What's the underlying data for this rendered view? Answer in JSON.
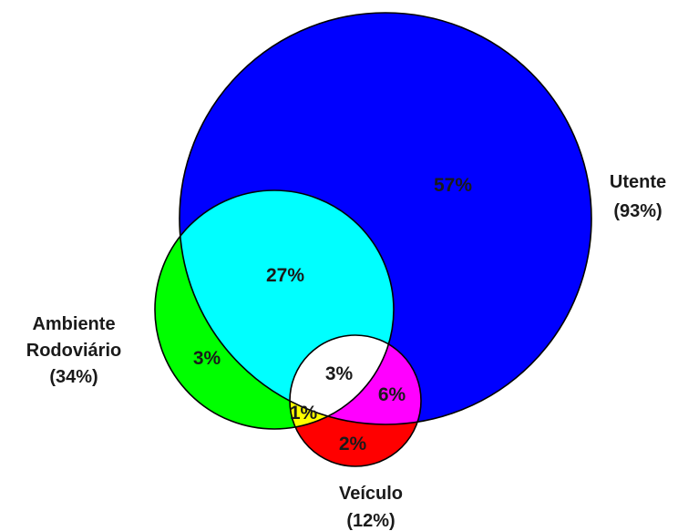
{
  "diagram": {
    "type": "venn",
    "sets": [
      {
        "id": "utente",
        "name": "Utente",
        "share": "(93%)"
      },
      {
        "id": "ambiente",
        "name_lines": [
          "Ambiente",
          "Rodoviário"
        ],
        "share": "(34%)"
      },
      {
        "id": "veiculo",
        "name": "Veículo",
        "share": "(12%)"
      }
    ],
    "regions": {
      "utente_only": "57%",
      "utente_ambiente": "27%",
      "ambiente_only": "3%",
      "all_three": "3%",
      "utente_veiculo": "6%",
      "ambiente_veiculo": "1%",
      "veiculo_only": "2%"
    },
    "colors": {
      "utente_only": "#0000ff",
      "ambiente_only": "#00ff00",
      "veiculo_only": "#ff0000",
      "utente_ambiente": "#00ffff",
      "utente_veiculo": "#ff00ff",
      "ambiente_veiculo": "#ffff00",
      "all_three": "#ffffff",
      "outline": "#000000"
    }
  }
}
